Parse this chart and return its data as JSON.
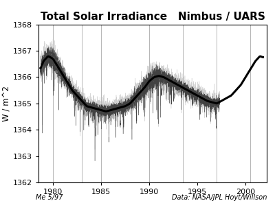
{
  "title": "Total Solar Irradiance   Nimbus / UARS",
  "ylabel": "W / m^2",
  "xlabel_left": "Me 5/97",
  "xlabel_right": "Data: NASA/JPL Hoyt/Willson",
  "xlim": [
    1978.5,
    2002.2
  ],
  "ylim": [
    1362,
    1368
  ],
  "yticks": [
    1362,
    1363,
    1364,
    1365,
    1366,
    1367,
    1368
  ],
  "xticks": [
    1980,
    1985,
    1990,
    1995,
    2000
  ],
  "vlines": [
    1980.0,
    1983.0,
    1985.0,
    1990.0,
    1993.5,
    1997.0,
    2000.5
  ],
  "vline_color": "#aaaaaa",
  "title_fontsize": 11,
  "label_fontsize": 8.5,
  "tick_fontsize": 8,
  "smooth_curve": {
    "t": [
      1978.7,
      1979.0,
      1979.5,
      1980.0,
      1980.5,
      1981.0,
      1981.5,
      1982.0,
      1982.5,
      1983.0,
      1983.5,
      1984.0,
      1984.5,
      1985.0,
      1985.5,
      1986.0,
      1986.5,
      1987.0,
      1987.5,
      1988.0,
      1988.5,
      1989.0,
      1989.5,
      1990.0,
      1990.5,
      1991.0,
      1991.5,
      1992.0,
      1992.5,
      1993.0,
      1993.5,
      1994.0,
      1994.5,
      1995.0,
      1995.5,
      1996.0,
      1996.5,
      1997.0,
      1997.5,
      1998.0,
      1998.5,
      1999.0,
      1999.5,
      2000.0,
      2000.5,
      2001.0,
      2001.5,
      2001.8
    ],
    "v": [
      1366.3,
      1366.6,
      1366.8,
      1366.7,
      1366.4,
      1366.1,
      1365.8,
      1365.5,
      1365.3,
      1365.1,
      1364.9,
      1364.85,
      1364.8,
      1364.75,
      1364.7,
      1364.75,
      1364.8,
      1364.85,
      1364.9,
      1365.0,
      1365.2,
      1365.4,
      1365.6,
      1365.85,
      1366.0,
      1366.05,
      1366.0,
      1365.9,
      1365.8,
      1365.7,
      1365.6,
      1365.5,
      1365.4,
      1365.3,
      1365.2,
      1365.1,
      1365.05,
      1365.0,
      1365.1,
      1365.2,
      1365.3,
      1365.5,
      1365.7,
      1366.0,
      1366.3,
      1366.6,
      1366.8,
      1366.75
    ]
  }
}
